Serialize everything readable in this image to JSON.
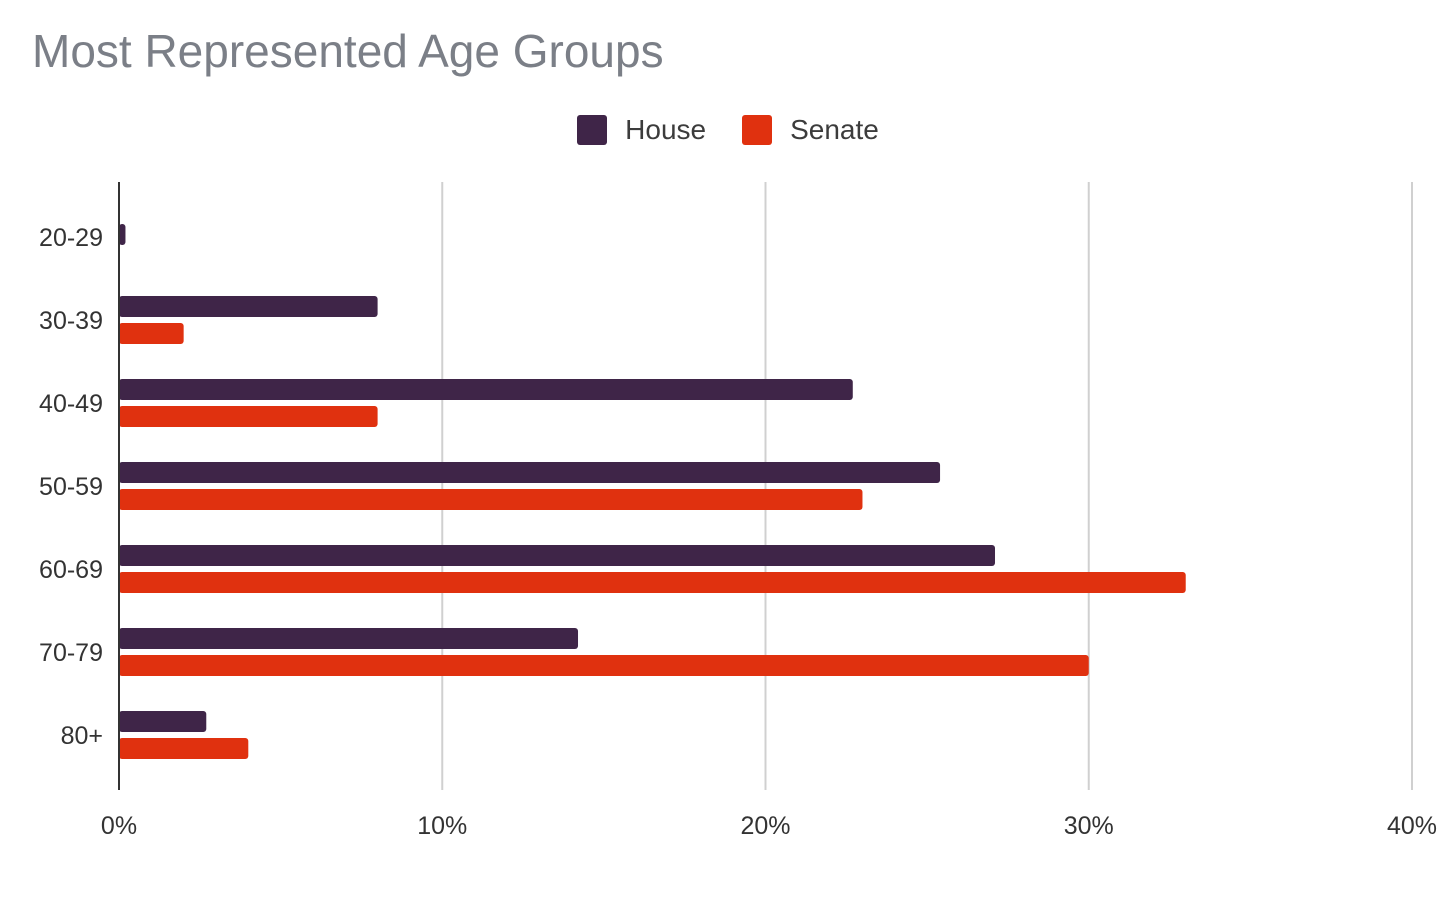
{
  "chart_data": {
    "type": "bar",
    "orientation": "horizontal",
    "title": "Most Represented Age Groups",
    "categories": [
      "20-29",
      "30-39",
      "40-49",
      "50-59",
      "60-69",
      "70-79",
      "80+"
    ],
    "series": [
      {
        "name": "House",
        "color": "#3f2548",
        "values": [
          0.2,
          8.0,
          22.7,
          25.4,
          27.1,
          14.2,
          2.7
        ]
      },
      {
        "name": "Senate",
        "color": "#e0310f",
        "values": [
          0,
          2.0,
          8.0,
          23.0,
          33.0,
          30.0,
          4.0
        ]
      }
    ],
    "xlim": [
      0,
      40
    ],
    "xticks": [
      "0%",
      "10%",
      "20%",
      "30%",
      "40%"
    ],
    "xtick_values": [
      0,
      10,
      20,
      30,
      40
    ],
    "grid": true,
    "legend": "top-center"
  }
}
